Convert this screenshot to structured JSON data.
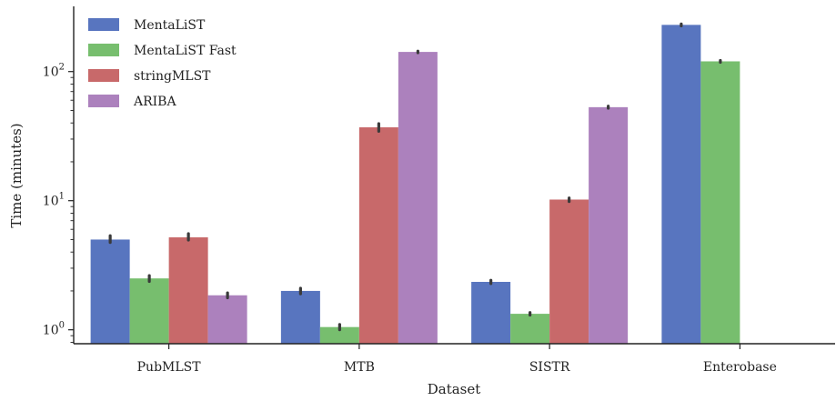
{
  "chart_data": {
    "type": "bar",
    "xlabel": "Dataset",
    "ylabel": "Time (minutes)",
    "yscale": "log",
    "ylim": [
      0.78,
      320
    ],
    "yticks": [
      {
        "value": 1,
        "base": "10",
        "exp": "0"
      },
      {
        "value": 10,
        "base": "10",
        "exp": "1"
      },
      {
        "value": 100,
        "base": "10",
        "exp": "2"
      }
    ],
    "categories": [
      "PubMLST",
      "MTB",
      "SISTR",
      "Enterobase"
    ],
    "legend_position": "top-left",
    "grid": false,
    "series": [
      {
        "name": "MentaLiST",
        "color": "#5875bf",
        "values": [
          5.0,
          2.0,
          2.35,
          230
        ],
        "err": [
          [
            4.75,
            5.35
          ],
          [
            1.9,
            2.1
          ],
          [
            2.28,
            2.42
          ],
          [
            226,
            234
          ]
        ]
      },
      {
        "name": "MentaLiST Fast",
        "color": "#77be6e",
        "values": [
          2.5,
          1.05,
          1.33,
          120
        ],
        "err": [
          [
            2.37,
            2.63
          ],
          [
            1.0,
            1.1
          ],
          [
            1.3,
            1.36
          ],
          [
            118,
            122
          ]
        ]
      },
      {
        "name": "stringMLST",
        "color": "#c8696a",
        "values": [
          5.2,
          37,
          10.2,
          null
        ],
        "err": [
          [
            4.95,
            5.55
          ],
          [
            34.5,
            39.5
          ],
          [
            9.85,
            10.5
          ],
          null
        ]
      },
      {
        "name": "ARIBA",
        "color": "#ac81bd",
        "values": [
          1.85,
          142,
          53,
          null
        ],
        "err": [
          [
            1.77,
            1.93
          ],
          [
            140,
            144
          ],
          [
            52,
            54
          ],
          null
        ]
      }
    ]
  }
}
